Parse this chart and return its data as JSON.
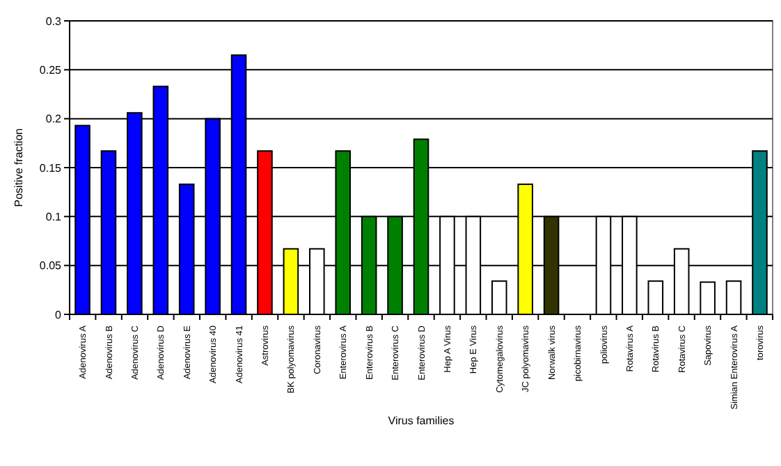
{
  "chart_data": {
    "type": "bar",
    "xlabel": "Virus families",
    "ylabel": "Positive fraction",
    "categories": [
      "Adenovirus A",
      "Adenovirus B",
      "Adenovirus C",
      "Adenovirus D",
      "Adenovirus E",
      "Adenovirus 40",
      "Adenovirus 41",
      "Astrovirus",
      "BK polyomavirus",
      "Coronavirus",
      "Enterovirus A",
      "Enterovirus B",
      "Enterovirus C",
      "Enterovirus D",
      "Hep A Virus",
      "Hep E Virus",
      "Cytomegalovirus",
      "JC polyomavirus",
      "Norwalk virus",
      "picobirnavirus",
      "poliovirus",
      "Rotavirus A",
      "Rotavirus B",
      "Rotavirus C",
      "Sapovirus",
      "Simian Enterovirus A",
      "torovirus"
    ],
    "values": [
      0.193,
      0.167,
      0.206,
      0.233,
      0.133,
      0.2,
      0.265,
      0.167,
      0.067,
      0.067,
      0.167,
      0.1,
      0.1,
      0.179,
      0.1,
      0.1,
      0.034,
      0.133,
      0.1,
      0,
      0.1,
      0.1,
      0.034,
      0.067,
      0.033,
      0.034,
      0.167
    ],
    "colors": [
      "#0000ff",
      "#0000ff",
      "#0000ff",
      "#0000ff",
      "#0000ff",
      "#0000ff",
      "#0000ff",
      "#ff0000",
      "#ffff00",
      "#ffffff",
      "#008000",
      "#008000",
      "#008000",
      "#008000",
      "#ffffff",
      "#ffffff",
      "#ffffff",
      "#ffff00",
      "#333300",
      "#ffffff",
      "#ffffff",
      "#ffffff",
      "#ffffff",
      "#ffffff",
      "#ffffff",
      "#ffffff",
      "#008080"
    ],
    "ylim": [
      0,
      0.3
    ],
    "yticks": [
      0,
      0.05,
      0.1,
      0.15,
      0.2,
      0.25,
      0.3
    ],
    "grid": "y"
  }
}
